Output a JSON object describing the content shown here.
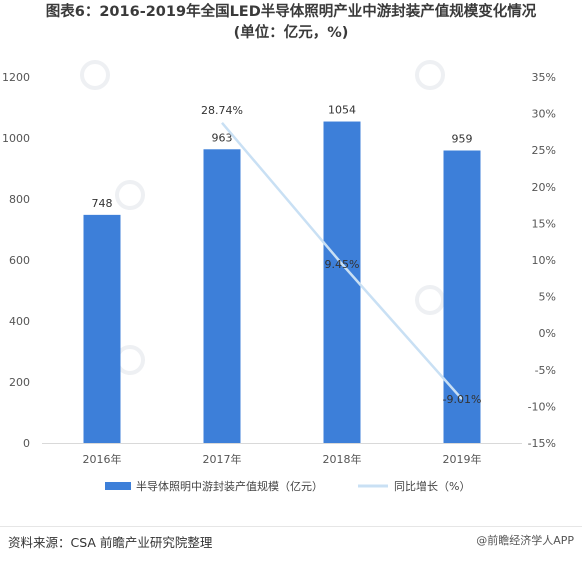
{
  "title": {
    "line1": "图表6：2016-2019年全国LED半导体照明产业中游封装产值规模变化情况",
    "line2": "(单位：亿元，%)"
  },
  "source": "资料来源：CSA 前瞻产业研究院整理",
  "brand": "@前瞻经济学人APP",
  "colors": {
    "bar": "#3d7fd9",
    "line": "#c9e0f4",
    "axis": "#d9d9d9",
    "text": "#555555"
  },
  "chart_data": {
    "type": "bar",
    "categories": [
      "2016年",
      "2017年",
      "2018年",
      "2019年"
    ],
    "series": [
      {
        "name": "半导体照明中游封装产值规模（亿元）",
        "type": "bar",
        "axis": "left",
        "values": [
          748,
          963,
          1054,
          959
        ],
        "labels": [
          "748",
          "963",
          "1054",
          "959"
        ]
      },
      {
        "name": "同比增长（%）",
        "type": "line",
        "axis": "right",
        "x": [
          "2017年",
          "2018年",
          "2019年"
        ],
        "values": [
          28.74,
          9.45,
          -9.01
        ],
        "labels": [
          "28.74%",
          "9.45%",
          "-9.01%"
        ]
      }
    ],
    "y_left": {
      "lim": [
        0,
        1200
      ],
      "ticks": [
        0,
        200,
        400,
        600,
        800,
        1000,
        1200
      ],
      "tick_labels": [
        "0",
        "200",
        "400",
        "600",
        "800",
        "1000",
        "1200"
      ]
    },
    "y_right": {
      "lim": [
        -15,
        35
      ],
      "ticks": [
        -15,
        -10,
        -5,
        0,
        5,
        10,
        15,
        20,
        25,
        30,
        35
      ],
      "tick_labels": [
        "-15%",
        "-10%",
        "-5%",
        "0%",
        "5%",
        "10%",
        "15%",
        "20%",
        "25%",
        "30%",
        "35%"
      ]
    },
    "grid": false,
    "legend": "bottom"
  }
}
